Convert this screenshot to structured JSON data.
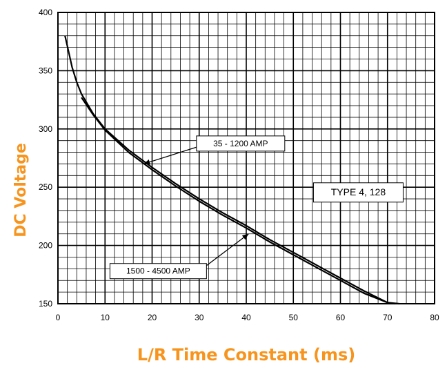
{
  "chart_data": {
    "type": "line",
    "title": "",
    "xlabel": "L/R Time Constant (ms)",
    "ylabel": "DC Voltage",
    "xlim": [
      0,
      80
    ],
    "ylim": [
      150,
      400
    ],
    "x_ticks": [
      "0",
      "10",
      "20",
      "30",
      "40",
      "50",
      "60",
      "70",
      "80"
    ],
    "y_ticks": [
      "150",
      "200",
      "250",
      "300",
      "350",
      "400"
    ],
    "grid": true,
    "series": [
      {
        "name": "35 - 1200 AMP",
        "x": [
          1.5,
          2,
          3,
          4,
          5,
          7.5,
          10,
          15,
          20,
          25,
          30,
          35,
          40,
          45,
          50,
          55,
          60,
          65,
          70,
          72.5
        ],
        "y": [
          380,
          371,
          353,
          340,
          330,
          313,
          300,
          282,
          267,
          253,
          240,
          228,
          217,
          205,
          194,
          183,
          172,
          161,
          151,
          150
        ]
      },
      {
        "name": "1500 - 4500 AMP",
        "x": [
          5,
          7.5,
          10,
          15,
          20,
          25,
          30,
          35,
          40,
          45,
          50,
          55,
          60,
          65,
          70,
          71.5
        ],
        "y": [
          327,
          312,
          299,
          280,
          265,
          251,
          238,
          226,
          215,
          203,
          192,
          181,
          170,
          159,
          151,
          150
        ]
      }
    ],
    "annotations": [
      "35 - 1200 AMP",
      "1500 - 4500 AMP",
      "TYPE 4, 128"
    ]
  }
}
